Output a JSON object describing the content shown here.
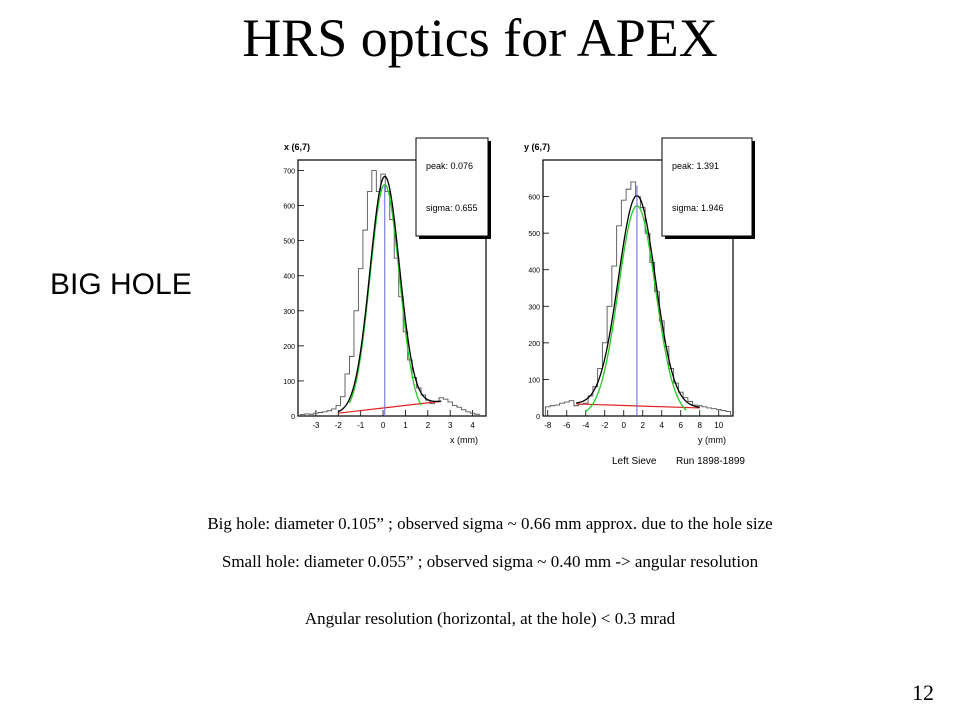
{
  "slide": {
    "title": "HRS optics for APEX",
    "side_label": "BIG HOLE",
    "notes": [
      "Big hole: diameter 0.105” ; observed sigma ~ 0.66 mm approx. due to the hole size",
      "Small hole: diameter 0.055” ; observed sigma ~ 0.40 mm  -> angular resolution",
      "Angular resolution (horizontal, at the hole) < 0.3 mrad"
    ],
    "page_number": "12"
  },
  "figure": {
    "footer_left": "Left Sieve",
    "footer_right": "Run 1898-1899"
  },
  "colors": {
    "histogram": "#555555",
    "total_fit": "#000000",
    "gauss_fit": "#22cc22",
    "background_fit": "#dd2222",
    "peak_line": "#6666dd"
  },
  "chart_data": [
    {
      "type": "line",
      "title": "x (6,7)",
      "xlabel": "x (mm)",
      "ylabel": "",
      "xlim": [
        -3.8,
        4.6
      ],
      "ylim": [
        0,
        730
      ],
      "xticks": [
        -3,
        -2,
        -1,
        0,
        1,
        2,
        3,
        4
      ],
      "yticks": [
        0,
        100,
        200,
        300,
        400,
        500,
        600,
        700
      ],
      "stats_box": {
        "peak": "peak: 0.076",
        "sigma": "sigma: 0.655"
      },
      "peak": 0.076,
      "sigma": 0.655,
      "amplitude": 660,
      "background_line": [
        [
          -2.0,
          8
        ],
        [
          2.6,
          42
        ]
      ],
      "fit_range": [
        -1.5,
        1.7
      ],
      "series": [
        {
          "x": [
            -3.6,
            -3.4,
            -3.2,
            -3.0,
            -2.8,
            -2.6,
            -2.4,
            -2.2,
            -2.0,
            -1.8,
            -1.6,
            -1.4,
            -1.2,
            -1.0,
            -0.8,
            -0.6,
            -0.4,
            -0.2,
            0.0,
            0.2,
            0.4,
            0.6,
            0.8,
            1.0,
            1.2,
            1.4,
            1.6,
            1.8,
            2.0,
            2.2,
            2.4,
            2.6,
            2.8,
            3.0,
            3.2,
            3.4,
            3.6,
            3.8,
            4.0,
            4.2
          ],
          "values": [
            4,
            6,
            5,
            8,
            10,
            12,
            15,
            20,
            30,
            55,
            120,
            170,
            300,
            420,
            530,
            640,
            700,
            640,
            690,
            640,
            560,
            450,
            340,
            240,
            160,
            110,
            80,
            60,
            45,
            35,
            40,
            52,
            48,
            40,
            30,
            25,
            18,
            12,
            8,
            5
          ]
        }
      ]
    },
    {
      "type": "line",
      "title": "y (6,7)",
      "xlabel": "y (mm)",
      "ylabel": "",
      "xlim": [
        -8.5,
        11.5
      ],
      "ylim": [
        0,
        700
      ],
      "xticks": [
        -8,
        -6,
        -4,
        -2,
        0,
        2,
        4,
        6,
        8,
        10
      ],
      "yticks": [
        0,
        100,
        200,
        300,
        400,
        500,
        600
      ],
      "stats_box": {
        "peak": "peak: 1.391",
        "sigma": "sigma: 1.946"
      },
      "peak": 1.391,
      "sigma": 1.946,
      "amplitude": 575,
      "background_line": [
        [
          -5.0,
          33
        ],
        [
          8.0,
          22
        ]
      ],
      "fit_range": [
        -4.0,
        6.6
      ],
      "series": [
        {
          "x": [
            -8,
            -7.5,
            -7,
            -6.5,
            -6,
            -5.5,
            -5,
            -4.5,
            -4,
            -3.5,
            -3,
            -2.5,
            -2,
            -1.5,
            -1,
            -0.5,
            0,
            0.5,
            1,
            1.5,
            2,
            2.5,
            3,
            3.5,
            4,
            4.5,
            5,
            5.5,
            6,
            6.5,
            7,
            7.5,
            8,
            8.5,
            9,
            9.5,
            10,
            10.5,
            11
          ],
          "values": [
            25,
            28,
            30,
            35,
            38,
            42,
            28,
            32,
            35,
            55,
            80,
            130,
            200,
            300,
            410,
            520,
            590,
            620,
            640,
            600,
            570,
            500,
            420,
            340,
            260,
            190,
            130,
            90,
            65,
            50,
            40,
            30,
            28,
            25,
            22,
            20,
            18,
            15,
            12
          ]
        }
      ]
    }
  ]
}
